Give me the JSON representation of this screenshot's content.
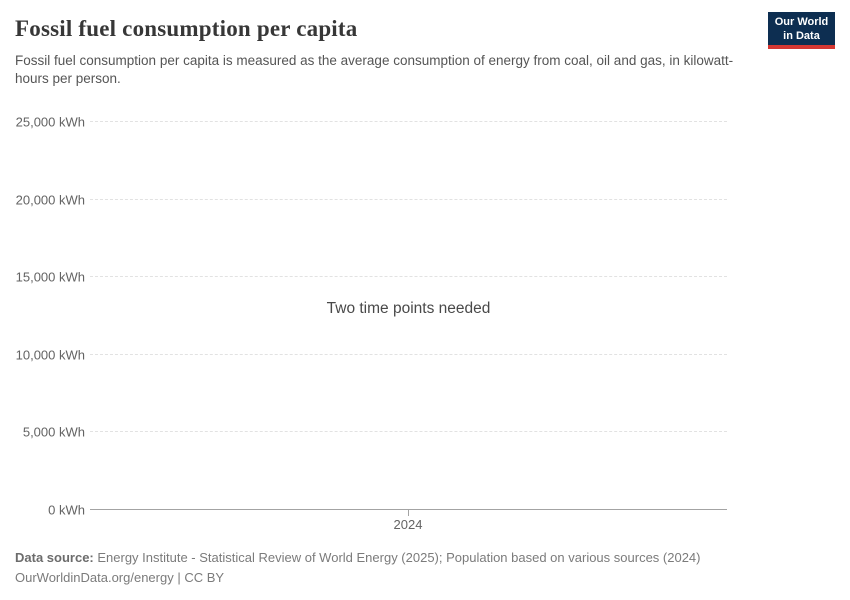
{
  "header": {
    "title": "Fossil fuel consumption per capita",
    "subtitle": "Fossil fuel consumption per capita is measured as the average consumption of energy from coal, oil and gas, in kilowatt-hours per person.",
    "logo": {
      "line1": "Our World",
      "line2": "in Data",
      "bg_color": "#0d2e51",
      "accent_color": "#d53732"
    }
  },
  "chart_data": {
    "type": "line",
    "title": "Fossil fuel consumption per capita",
    "unit": "kWh",
    "empty_message": "Two time points needed",
    "series": [],
    "x_tick_labels": [
      "2024"
    ],
    "y_ticks": [
      {
        "value": 25000,
        "label": "25,000 kWh"
      },
      {
        "value": 20000,
        "label": "20,000 kWh"
      },
      {
        "value": 15000,
        "label": "15,000 kWh"
      },
      {
        "value": 10000,
        "label": "10,000 kWh"
      },
      {
        "value": 5000,
        "label": "5,000 kWh"
      },
      {
        "value": 0,
        "label": "0 kWh"
      }
    ],
    "ylim": [
      0,
      25000
    ],
    "grid": true,
    "legend_position": "none",
    "gridline_color": "#e2e2e2",
    "axis_color": "#a3a3a3"
  },
  "footer": {
    "datasource_label": "Data source:",
    "datasource_text": " Energy Institute - Statistical Review of World Energy (2025); Population based on various sources (2024)",
    "license_line": "OurWorldinData.org/energy | CC BY"
  }
}
